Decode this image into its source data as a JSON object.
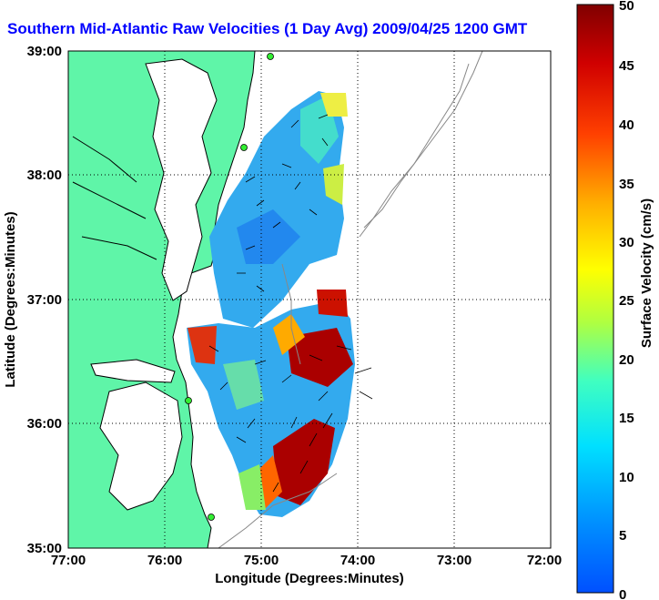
{
  "title": "Southern Mid-Atlantic Raw Velocities (1 Day Avg) 2009/04/25 1200 GMT",
  "xaxis": {
    "label": "Longitude (Degrees:Minutes)",
    "ticks": [
      "77:00",
      "76:00",
      "75:00",
      "74:00",
      "73:00",
      "72:00"
    ]
  },
  "yaxis": {
    "label": "Latitude (Degrees:Minutes)",
    "ticks": [
      "39:00",
      "38:00",
      "37:00",
      "36:00",
      "35:00"
    ]
  },
  "colorbar": {
    "label": "Surface Velocity (cm/s)",
    "ticks": [
      "50",
      "45",
      "40",
      "35",
      "30",
      "25",
      "20",
      "15",
      "10",
      "5",
      "0"
    ]
  },
  "colors": {
    "land": "#5ff5a8",
    "title": "#0000ff"
  }
}
